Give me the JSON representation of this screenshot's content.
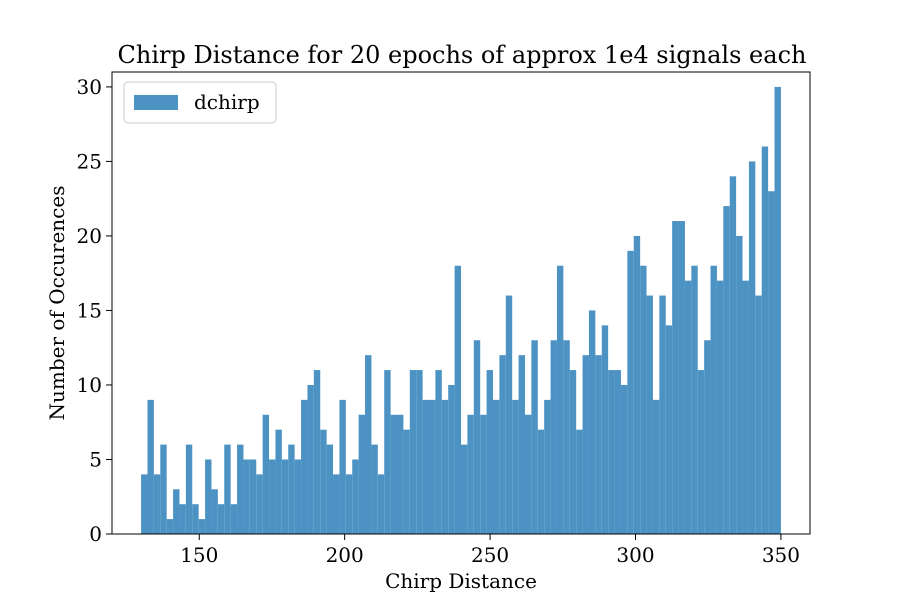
{
  "chart_data": {
    "type": "bar",
    "title": "Chirp Distance for 20 epochs of approx 1e4 signals each",
    "xlabel": "Chirp Distance",
    "ylabel": "Number of Occurences",
    "xlim": [
      120,
      360
    ],
    "ylim": [
      0,
      31
    ],
    "bin_start": 130,
    "bin_end": 350,
    "bin_count": 100,
    "bar_color": "#4c93c4",
    "grid": false,
    "legend_position": "top-left",
    "x_ticks": [
      150,
      200,
      250,
      300,
      350
    ],
    "y_ticks": [
      0,
      5,
      10,
      15,
      20,
      25,
      30
    ],
    "series": [
      {
        "name": "dchirp",
        "values": [
          4,
          9,
          4,
          6,
          1,
          3,
          2,
          6,
          2,
          1,
          5,
          3,
          2,
          6,
          2,
          6,
          5,
          5,
          4,
          8,
          5,
          7,
          5,
          6,
          5,
          9,
          10,
          11,
          7,
          6,
          4,
          9,
          4,
          5,
          8,
          12,
          6,
          4,
          11,
          8,
          8,
          7,
          11,
          11,
          9,
          9,
          11,
          9,
          10,
          18,
          6,
          8,
          13,
          8,
          11,
          9,
          12,
          16,
          9,
          12,
          8,
          13,
          7,
          9,
          13,
          18,
          13,
          11,
          7,
          12,
          15,
          12,
          14,
          11,
          11,
          10,
          19,
          20,
          18,
          16,
          9,
          16,
          14,
          21,
          21,
          17,
          18,
          11,
          13,
          18,
          17,
          22,
          24,
          20,
          17,
          25,
          16,
          26,
          23,
          30
        ]
      }
    ]
  }
}
